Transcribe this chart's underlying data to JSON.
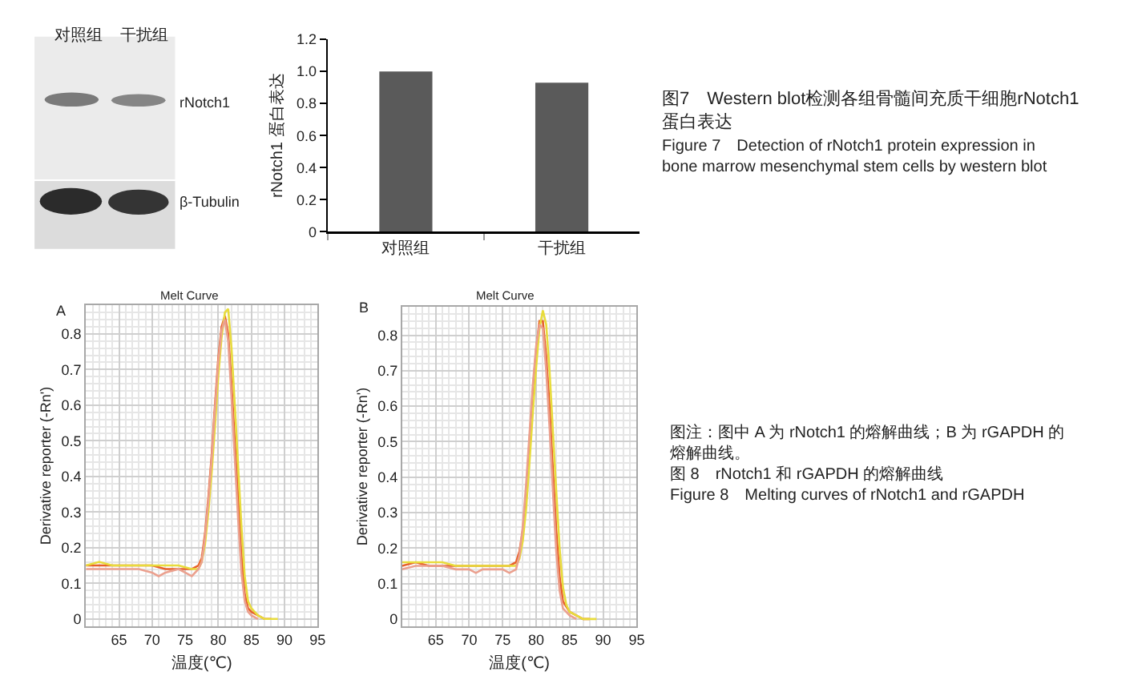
{
  "chart_data": [
    {
      "type": "other",
      "annotations": [
        "对照组",
        "干扰组",
        "rNotch1",
        "β-Tubulin"
      ]
    },
    {
      "type": "bar",
      "ylabel": "rNotch1 蛋白表达",
      "categories": [
        "对照组",
        "干扰组"
      ],
      "values": [
        1.0,
        0.93
      ],
      "color": "#5a5a5a",
      "ylim": [
        0,
        1.2
      ],
      "yticks": [
        0,
        0.2,
        0.4,
        0.6,
        0.8,
        {
          "value": 1.0,
          "label": "1.0"
        },
        1.2
      ],
      "annotations": [
        "图7　Western blot检测各组骨髓间充质干细胞rNotch1蛋白表达",
        "Figure 7　Detection of rNotch1 protein expression in\nbone marrow mesenchymal stem cells by western blot"
      ]
    },
    {
      "type": "line",
      "title": "Melt Curve",
      "xlabel": "温度(℃)",
      "ylabel": "Derivative reporter (-Rn')",
      "xlim": [
        60,
        95
      ],
      "xticks": [
        65,
        70,
        75,
        80,
        85,
        90,
        95
      ],
      "ylim": [
        -0.02,
        0.88
      ],
      "yticks": [
        0,
        0.1,
        0.2,
        0.3,
        0.4,
        0.5,
        0.6,
        0.7,
        0.8
      ],
      "grid": true,
      "annotations": [
        "A"
      ],
      "series": [
        {
          "color": "#e8602a",
          "x": [
            60,
            62,
            64,
            66,
            68,
            70,
            72,
            74,
            76,
            77,
            77.5,
            78,
            78.5,
            79,
            79.5,
            80,
            80.5,
            81,
            81.5,
            82,
            82.5,
            83,
            83.5,
            84,
            84.5,
            85,
            86,
            87,
            88
          ],
          "values": [
            0.15,
            0.15,
            0.15,
            0.15,
            0.15,
            0.15,
            0.14,
            0.14,
            0.14,
            0.15,
            0.17,
            0.24,
            0.34,
            0.46,
            0.6,
            0.73,
            0.82,
            0.85,
            0.8,
            0.66,
            0.5,
            0.34,
            0.18,
            0.07,
            0.03,
            0.02,
            0.01,
            0,
            0
          ]
        },
        {
          "color": "#e8dc3c",
          "x": [
            60,
            62,
            64,
            66,
            68,
            70,
            72,
            74,
            76,
            77,
            77.5,
            78,
            78.5,
            79,
            79.5,
            80,
            80.5,
            81,
            81.5,
            82,
            82.5,
            83,
            83.5,
            84,
            84.5,
            85,
            86,
            87,
            88,
            89
          ],
          "values": [
            0.15,
            0.16,
            0.15,
            0.15,
            0.15,
            0.15,
            0.15,
            0.15,
            0.14,
            0.14,
            0.16,
            0.21,
            0.3,
            0.41,
            0.54,
            0.68,
            0.79,
            0.86,
            0.87,
            0.76,
            0.6,
            0.43,
            0.26,
            0.12,
            0.05,
            0.03,
            0.01,
            0,
            0,
            0
          ]
        },
        {
          "color": "#eba08e",
          "x": [
            60,
            62,
            64,
            66,
            68,
            70,
            71,
            72,
            74,
            75,
            76,
            77,
            77.5,
            78,
            78.5,
            79,
            79.5,
            80,
            80.5,
            81,
            81.5,
            82,
            82.5,
            83,
            83.5,
            84,
            84.5,
            85,
            86
          ],
          "values": [
            0.14,
            0.14,
            0.14,
            0.14,
            0.14,
            0.13,
            0.12,
            0.13,
            0.14,
            0.13,
            0.12,
            0.14,
            0.16,
            0.23,
            0.33,
            0.45,
            0.59,
            0.72,
            0.81,
            0.84,
            0.78,
            0.62,
            0.45,
            0.28,
            0.13,
            0.05,
            0.02,
            0.01,
            0
          ]
        }
      ]
    },
    {
      "type": "line",
      "title": "Melt Curve",
      "xlabel": "温度(℃)",
      "ylabel": "Derivative reporter (-Rn')",
      "xlim": [
        60,
        95
      ],
      "xticks": [
        65,
        70,
        75,
        80,
        85,
        90,
        95
      ],
      "ylim": [
        -0.02,
        0.88
      ],
      "yticks": [
        0,
        0.1,
        0.2,
        0.3,
        0.4,
        0.5,
        0.6,
        0.7,
        0.8
      ],
      "grid": true,
      "annotations": [
        "B",
        "图注：图中 A 为 rNotch1 的熔解曲线；B 为 rGAPDH 的熔解曲线。",
        "图 8　rNotch1 和 rGAPDH 的熔解曲线",
        "Figure 8　Melting curves of rNotch1 and rGAPDH"
      ],
      "series": [
        {
          "color": "#e8602a",
          "x": [
            60,
            62,
            64,
            66,
            68,
            70,
            72,
            74,
            76,
            77,
            77.5,
            78,
            78.5,
            79,
            79.5,
            80,
            80.5,
            81,
            81.5,
            82,
            82.5,
            83,
            83.5,
            84,
            85,
            86,
            87,
            88
          ],
          "values": [
            0.15,
            0.16,
            0.15,
            0.15,
            0.15,
            0.15,
            0.15,
            0.15,
            0.15,
            0.16,
            0.19,
            0.25,
            0.35,
            0.5,
            0.64,
            0.76,
            0.84,
            0.84,
            0.74,
            0.6,
            0.42,
            0.25,
            0.12,
            0.05,
            0.02,
            0.01,
            0,
            0
          ]
        },
        {
          "color": "#e8dc3c",
          "x": [
            60,
            62,
            64,
            66,
            68,
            70,
            72,
            74,
            76,
            77,
            77.5,
            78,
            78.5,
            79,
            79.5,
            80,
            80.5,
            81,
            81.5,
            82,
            82.5,
            83,
            83.5,
            84,
            84.5,
            85,
            86,
            87,
            88,
            89
          ],
          "values": [
            0.16,
            0.16,
            0.16,
            0.16,
            0.15,
            0.15,
            0.15,
            0.15,
            0.15,
            0.15,
            0.17,
            0.22,
            0.31,
            0.44,
            0.58,
            0.71,
            0.82,
            0.87,
            0.83,
            0.7,
            0.53,
            0.36,
            0.2,
            0.09,
            0.04,
            0.02,
            0.01,
            0,
            0,
            0
          ]
        },
        {
          "color": "#eba08e",
          "x": [
            60,
            62,
            64,
            66,
            68,
            70,
            71,
            72,
            74,
            75,
            76,
            77,
            77.5,
            78,
            78.5,
            79,
            79.5,
            80,
            80.5,
            81,
            81.5,
            82,
            82.5,
            83,
            83.5,
            84,
            85,
            86
          ],
          "values": [
            0.14,
            0.15,
            0.15,
            0.15,
            0.14,
            0.14,
            0.13,
            0.14,
            0.14,
            0.14,
            0.13,
            0.14,
            0.18,
            0.26,
            0.38,
            0.52,
            0.66,
            0.77,
            0.83,
            0.82,
            0.7,
            0.54,
            0.36,
            0.19,
            0.08,
            0.03,
            0.01,
            0
          ]
        }
      ]
    }
  ]
}
